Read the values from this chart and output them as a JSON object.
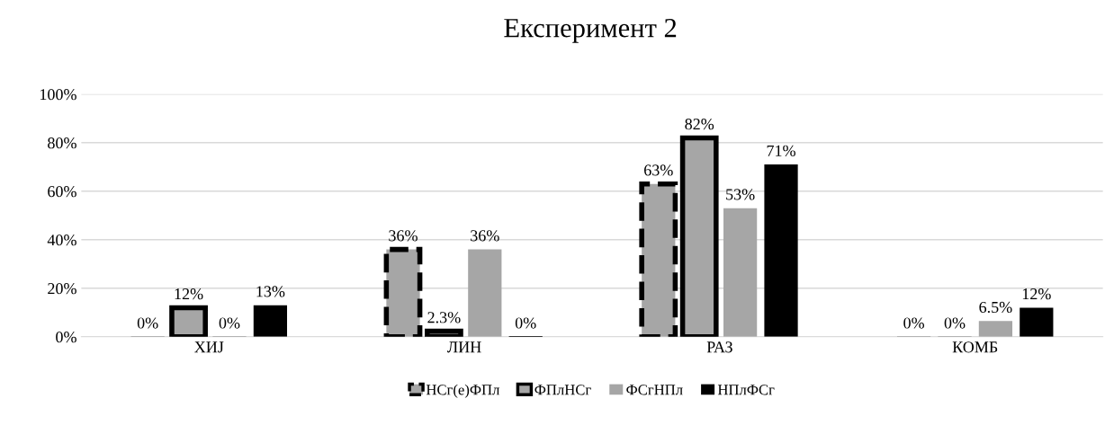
{
  "chart_data": {
    "type": "bar",
    "title": "Експеримент 2",
    "categories": [
      "ХИЈ",
      "ЛИН",
      "РАЗ",
      "КОМБ"
    ],
    "series": [
      {
        "name": "НСг(е)ФПл",
        "color": "#a6a6a6",
        "line_style": "dashed",
        "values": [
          0,
          36,
          63,
          0
        ],
        "value_labels": [
          "0%",
          "36%",
          "63%",
          "0%"
        ]
      },
      {
        "name": "ФПлНСг",
        "color": "#a6a6a6",
        "line_style": "solid",
        "values": [
          12,
          2.3,
          82,
          0
        ],
        "value_labels": [
          "12%",
          "2.3%",
          "82%",
          "0%"
        ]
      },
      {
        "name": "ФСгНПл",
        "color": "#a6a6a6",
        "values": [
          0,
          36,
          53,
          6.5
        ],
        "value_labels": [
          "0%",
          "36%",
          "53%",
          "6.5%"
        ]
      },
      {
        "name": "НПлФСг",
        "color": "#000000",
        "values": [
          13,
          0,
          71,
          12
        ],
        "value_labels": [
          "13%",
          "0%",
          "71%",
          "12%"
        ]
      }
    ],
    "ylim": [
      0,
      100
    ],
    "yticks": [
      {
        "value": 0,
        "label": "0%"
      },
      {
        "value": 20,
        "label": "20%"
      },
      {
        "value": 40,
        "label": "40%"
      },
      {
        "value": 60,
        "label": "60%"
      },
      {
        "value": 80,
        "label": "80%"
      },
      {
        "value": 100,
        "label": "100%"
      }
    ],
    "grid": "y",
    "legend": "bottom"
  }
}
